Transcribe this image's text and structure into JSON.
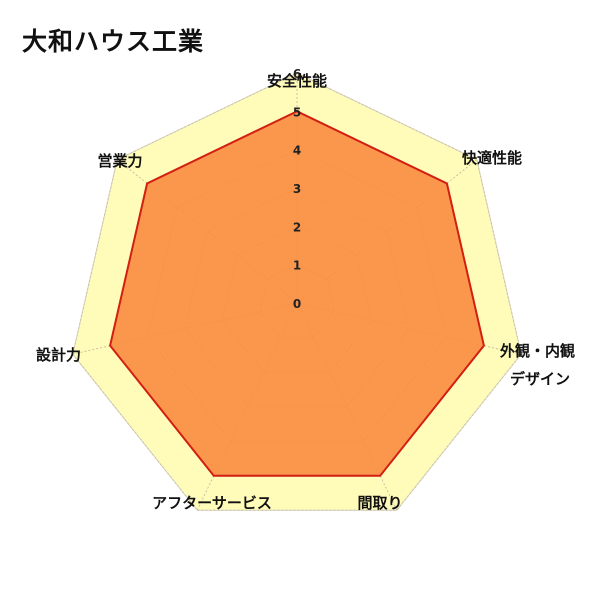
{
  "title": "大和ハウス工業",
  "chart_data": {
    "type": "radar",
    "title": "大和ハウス工業",
    "categories": [
      "安全性能",
      "快適性能",
      "外観・内観デザイン",
      "間取り",
      "アフターサービス",
      "設計力",
      "営業力"
    ],
    "category_label_lines": [
      [
        "安全性能"
      ],
      [
        "快適性能"
      ],
      [
        "外観・内観",
        "デザイン"
      ],
      [
        "間取り"
      ],
      [
        "アフターサービス"
      ],
      [
        "設計力"
      ],
      [
        "営業力"
      ]
    ],
    "series": [
      {
        "values": [
          5,
          5,
          5,
          5,
          5,
          5,
          5
        ]
      }
    ],
    "rlim": [
      0,
      6
    ],
    "ticks": [
      0,
      1,
      2,
      3,
      4,
      5,
      6
    ],
    "colors": {
      "fill": "#f98a3c",
      "stroke": "#d21f12",
      "band_outer": "#fffbb8",
      "band_inner": "#fff6c6",
      "grid": "#c9c2a8",
      "outline": "#d8d2bf"
    }
  }
}
